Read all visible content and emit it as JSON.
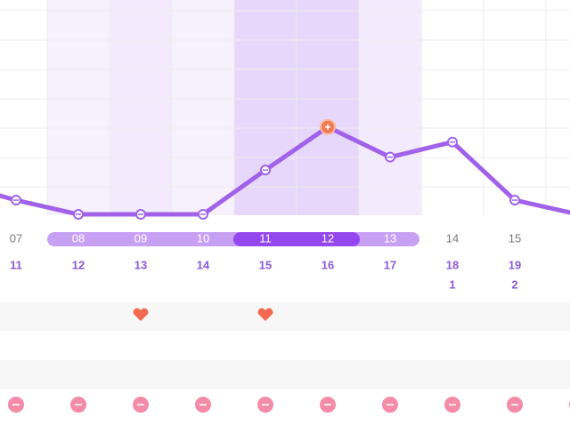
{
  "chart_data": {
    "type": "line",
    "categories": [
      null,
      "07",
      "08",
      "09",
      "10",
      "11",
      "12",
      "13",
      "14",
      "15",
      null
    ],
    "dates": [
      null,
      "11",
      "12",
      "13",
      "14",
      "15",
      "16",
      "17",
      "18",
      "19",
      null
    ],
    "months": [
      null,
      null,
      null,
      null,
      null,
      null,
      null,
      null,
      "1",
      "2",
      null
    ],
    "values": [
      15,
      7,
      0.4,
      0.4,
      0.4,
      21,
      41,
      27,
      34,
      7,
      0.5
    ],
    "ylim": [
      0,
      100
    ],
    "color": "#a162ea",
    "selected": "16",
    "fertile_days": [
      "08",
      "09",
      "10",
      "11",
      "12",
      "13"
    ],
    "peak_days": [
      "11",
      "12"
    ],
    "heart_days": [
      "13",
      "15"
    ]
  }
}
